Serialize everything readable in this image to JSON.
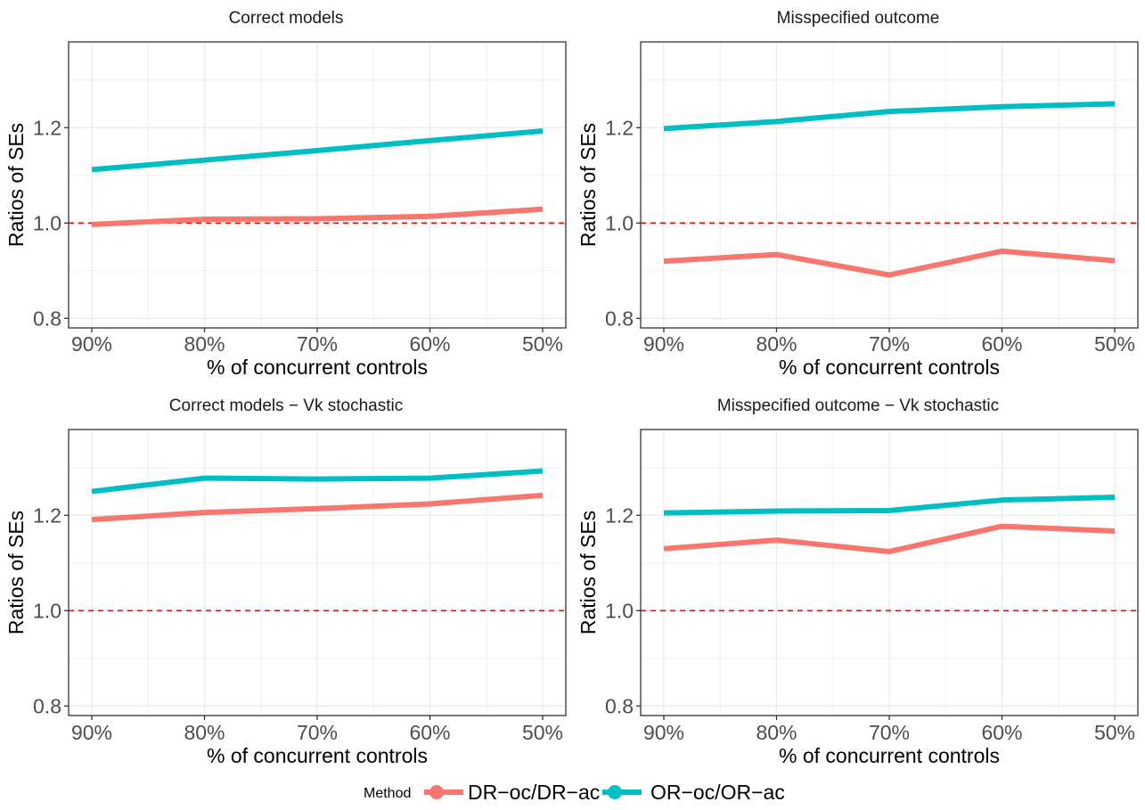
{
  "figure": {
    "legend": {
      "title": "Method",
      "position": "bottom",
      "entries": [
        {
          "label": "DR−oc/DR−ac",
          "color": "#F8766D"
        },
        {
          "label": "OR−oc/OR−ac",
          "color": "#00BFC4"
        }
      ]
    },
    "reference_line": {
      "y": 1.0,
      "color": "#FF0000",
      "style": "dashed"
    }
  },
  "chart_data": [
    {
      "type": "line",
      "title": "Correct models",
      "xlabel": "% of concurrent controls",
      "ylabel": "Ratios of SEs",
      "categories": [
        "90%",
        "80%",
        "70%",
        "60%",
        "50%"
      ],
      "ylim": [
        0.78,
        1.38
      ],
      "yticks": [
        "0.8",
        "1.0",
        "1.2"
      ],
      "series": [
        {
          "name": "DR−oc/DR−ac",
          "values": [
            0.997,
            1.008,
            1.009,
            1.014,
            1.029
          ]
        },
        {
          "name": "OR−oc/OR−ac",
          "values": [
            1.112,
            1.132,
            1.152,
            1.173,
            1.193
          ]
        }
      ]
    },
    {
      "type": "line",
      "title": "Misspecified outcome",
      "xlabel": "% of concurrent controls",
      "ylabel": "Ratios of SEs",
      "categories": [
        "90%",
        "80%",
        "70%",
        "60%",
        "50%"
      ],
      "ylim": [
        0.78,
        1.38
      ],
      "yticks": [
        "0.8",
        "1.0",
        "1.2"
      ],
      "series": [
        {
          "name": "DR−oc/DR−ac",
          "values": [
            0.92,
            0.934,
            0.891,
            0.941,
            0.921
          ]
        },
        {
          "name": "OR−oc/OR−ac",
          "values": [
            1.198,
            1.213,
            1.234,
            1.244,
            1.25
          ]
        }
      ]
    },
    {
      "type": "line",
      "title": "Correct models − Vk stochastic",
      "xlabel": "% of concurrent controls",
      "ylabel": "Ratios of SEs",
      "categories": [
        "90%",
        "80%",
        "70%",
        "60%",
        "50%"
      ],
      "ylim": [
        0.78,
        1.38
      ],
      "yticks": [
        "0.8",
        "1.0",
        "1.2"
      ],
      "series": [
        {
          "name": "DR−oc/DR−ac",
          "values": [
            1.191,
            1.206,
            1.214,
            1.224,
            1.242
          ]
        },
        {
          "name": "OR−oc/OR−ac",
          "values": [
            1.25,
            1.278,
            1.276,
            1.278,
            1.293
          ]
        }
      ]
    },
    {
      "type": "line",
      "title": "Misspecified outcome − Vk stochastic",
      "xlabel": "% of concurrent controls",
      "ylabel": "Ratios of SEs",
      "categories": [
        "90%",
        "80%",
        "70%",
        "60%",
        "50%"
      ],
      "ylim": [
        0.78,
        1.38
      ],
      "yticks": [
        "0.8",
        "1.0",
        "1.2"
      ],
      "series": [
        {
          "name": "DR−oc/DR−ac",
          "values": [
            1.13,
            1.148,
            1.124,
            1.177,
            1.167
          ]
        },
        {
          "name": "OR−oc/OR−ac",
          "values": [
            1.205,
            1.209,
            1.21,
            1.232,
            1.238
          ]
        }
      ]
    }
  ]
}
